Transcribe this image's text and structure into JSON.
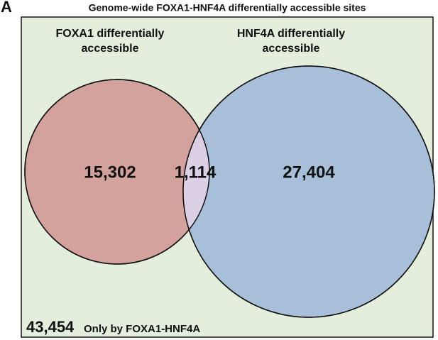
{
  "panel_label": "A",
  "title": "Genome-wide FOXA1-HNF4A differentially accessible sites",
  "sets": [
    {
      "label_lines": [
        "FOXA1 differentially",
        "accessible"
      ],
      "count": "15,302"
    },
    {
      "label_lines": [
        "HNF4A differentially",
        "accessible"
      ],
      "count": "27,404"
    }
  ],
  "overlap": {
    "count": "1,114"
  },
  "background": {
    "count": "43,454",
    "label": "Only by FOXA1-HNF4A"
  }
}
